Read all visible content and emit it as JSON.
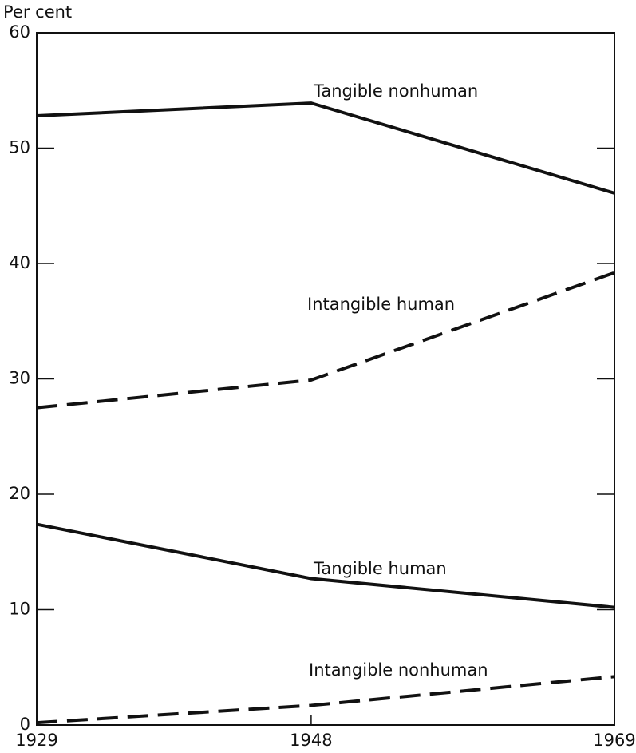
{
  "chart_data": {
    "type": "line",
    "y_label": "Per cent",
    "x": [
      1929,
      1948,
      1969
    ],
    "xlim": [
      1929,
      1969
    ],
    "xticks": [
      1929,
      1948,
      1969
    ],
    "ylim": [
      0,
      60
    ],
    "yticks": [
      0,
      10,
      20,
      30,
      40,
      50,
      60
    ],
    "series": [
      {
        "name": "Tangible nonhuman",
        "color": "#111111",
        "style": "solid",
        "values": [
          52.8,
          53.9,
          46.1
        ]
      },
      {
        "name": "Intangible human",
        "color": "#111111",
        "style": "dashed",
        "values": [
          27.5,
          29.9,
          39.2
        ]
      },
      {
        "name": "Tangible human",
        "color": "#111111",
        "style": "solid",
        "values": [
          17.4,
          12.7,
          10.2
        ]
      },
      {
        "name": "Intangible nonhuman",
        "color": "#111111",
        "style": "dashed",
        "values": [
          0.2,
          1.7,
          4.2
        ]
      }
    ]
  }
}
